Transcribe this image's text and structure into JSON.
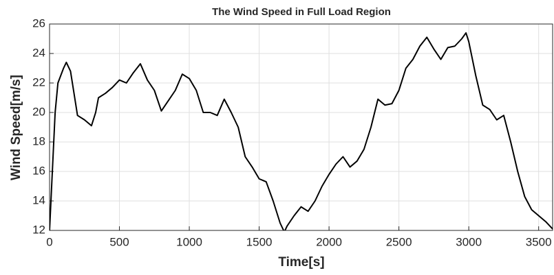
{
  "chart_data": {
    "type": "line",
    "title": "The Wind Speed in Full Load Region",
    "xlabel": "Time[s]",
    "ylabel": "Wind Speed[m/s]",
    "x": [
      0,
      20,
      40,
      60,
      100,
      120,
      150,
      180,
      200,
      250,
      300,
      330,
      350,
      400,
      450,
      500,
      550,
      600,
      650,
      700,
      750,
      800,
      850,
      900,
      950,
      1000,
      1050,
      1100,
      1150,
      1200,
      1250,
      1300,
      1350,
      1400,
      1450,
      1500,
      1550,
      1600,
      1650,
      1680,
      1700,
      1750,
      1800,
      1850,
      1900,
      1950,
      2000,
      2050,
      2100,
      2150,
      2200,
      2250,
      2300,
      2350,
      2400,
      2450,
      2500,
      2550,
      2600,
      2650,
      2700,
      2750,
      2800,
      2850,
      2900,
      2950,
      2980,
      3000,
      3050,
      3100,
      3150,
      3200,
      3250,
      3300,
      3350,
      3400,
      3450,
      3500,
      3550,
      3600
    ],
    "series": [
      {
        "name": "Wind speed",
        "color": "#000000",
        "values": [
          12,
          16,
          20,
          22,
          23,
          23.4,
          22.8,
          21,
          19.8,
          19.5,
          19.1,
          20,
          21,
          21.3,
          21.7,
          22.2,
          22,
          22.7,
          23.3,
          22.2,
          21.5,
          20.1,
          20.8,
          21.5,
          22.6,
          22.3,
          21.5,
          20,
          20,
          19.8,
          20.9,
          20,
          19,
          17,
          16.3,
          15.5,
          15.3,
          14,
          12.5,
          11.9,
          12.3,
          13,
          13.6,
          13.3,
          14,
          15,
          15.8,
          16.5,
          17,
          16.3,
          16.7,
          17.5,
          19,
          20.9,
          20.5,
          20.6,
          21.5,
          23,
          23.6,
          24.5,
          25.1,
          24.3,
          23.6,
          24.4,
          24.5,
          25,
          25.4,
          24.8,
          22.5,
          20.5,
          20.2,
          19.5,
          19.8,
          18,
          16,
          14.3,
          13.4,
          13,
          12.6,
          12.1
        ]
      }
    ],
    "xlim": [
      0,
      3600
    ],
    "ylim": [
      12,
      26
    ],
    "xticks": [
      0,
      500,
      1000,
      1500,
      2000,
      2500,
      3000,
      3500
    ],
    "yticks": [
      12,
      14,
      16,
      18,
      20,
      22,
      24,
      26
    ],
    "grid": true
  }
}
